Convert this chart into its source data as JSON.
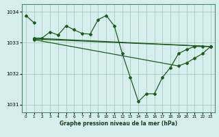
{
  "title": "Graphe pression niveau de la mer (hPa)",
  "bg_color": "#d6eeee",
  "grid_color": "#aaccbb",
  "line_color": "#1a5c1a",
  "xlim": [
    -0.5,
    23.5
  ],
  "ylim": [
    1030.75,
    1034.25
  ],
  "yticks": [
    1031,
    1032,
    1033,
    1034
  ],
  "xticks": [
    0,
    1,
    2,
    3,
    4,
    5,
    6,
    7,
    8,
    9,
    10,
    11,
    12,
    13,
    14,
    15,
    16,
    17,
    18,
    19,
    20,
    21,
    22,
    23
  ],
  "line1_x": [
    0,
    1
  ],
  "line1_y": [
    1033.88,
    1033.65
  ],
  "line2_x": [
    1,
    2,
    3,
    4,
    5,
    6,
    7,
    8,
    9,
    10,
    11,
    12,
    13,
    14,
    15,
    16,
    17,
    18,
    19,
    20,
    21,
    22,
    23
  ],
  "line2_y": [
    1033.15,
    1033.15,
    1033.35,
    1033.25,
    1033.55,
    1033.42,
    1033.3,
    1033.28,
    1033.75,
    1033.88,
    1033.55,
    1032.65,
    1031.88,
    1031.1,
    1031.35,
    1031.35,
    1031.88,
    1032.2,
    1032.65,
    1032.78,
    1032.88,
    1032.88,
    1032.88
  ],
  "line3_x": [
    1,
    23
  ],
  "line3_y": [
    1033.15,
    1032.88
  ],
  "line4_x": [
    1,
    23
  ],
  "line4_y": [
    1033.12,
    1032.88
  ],
  "line5_x": [
    1,
    19,
    20,
    21,
    22,
    23
  ],
  "line5_y": [
    1033.1,
    1032.25,
    1032.35,
    1032.5,
    1032.65,
    1032.88
  ]
}
